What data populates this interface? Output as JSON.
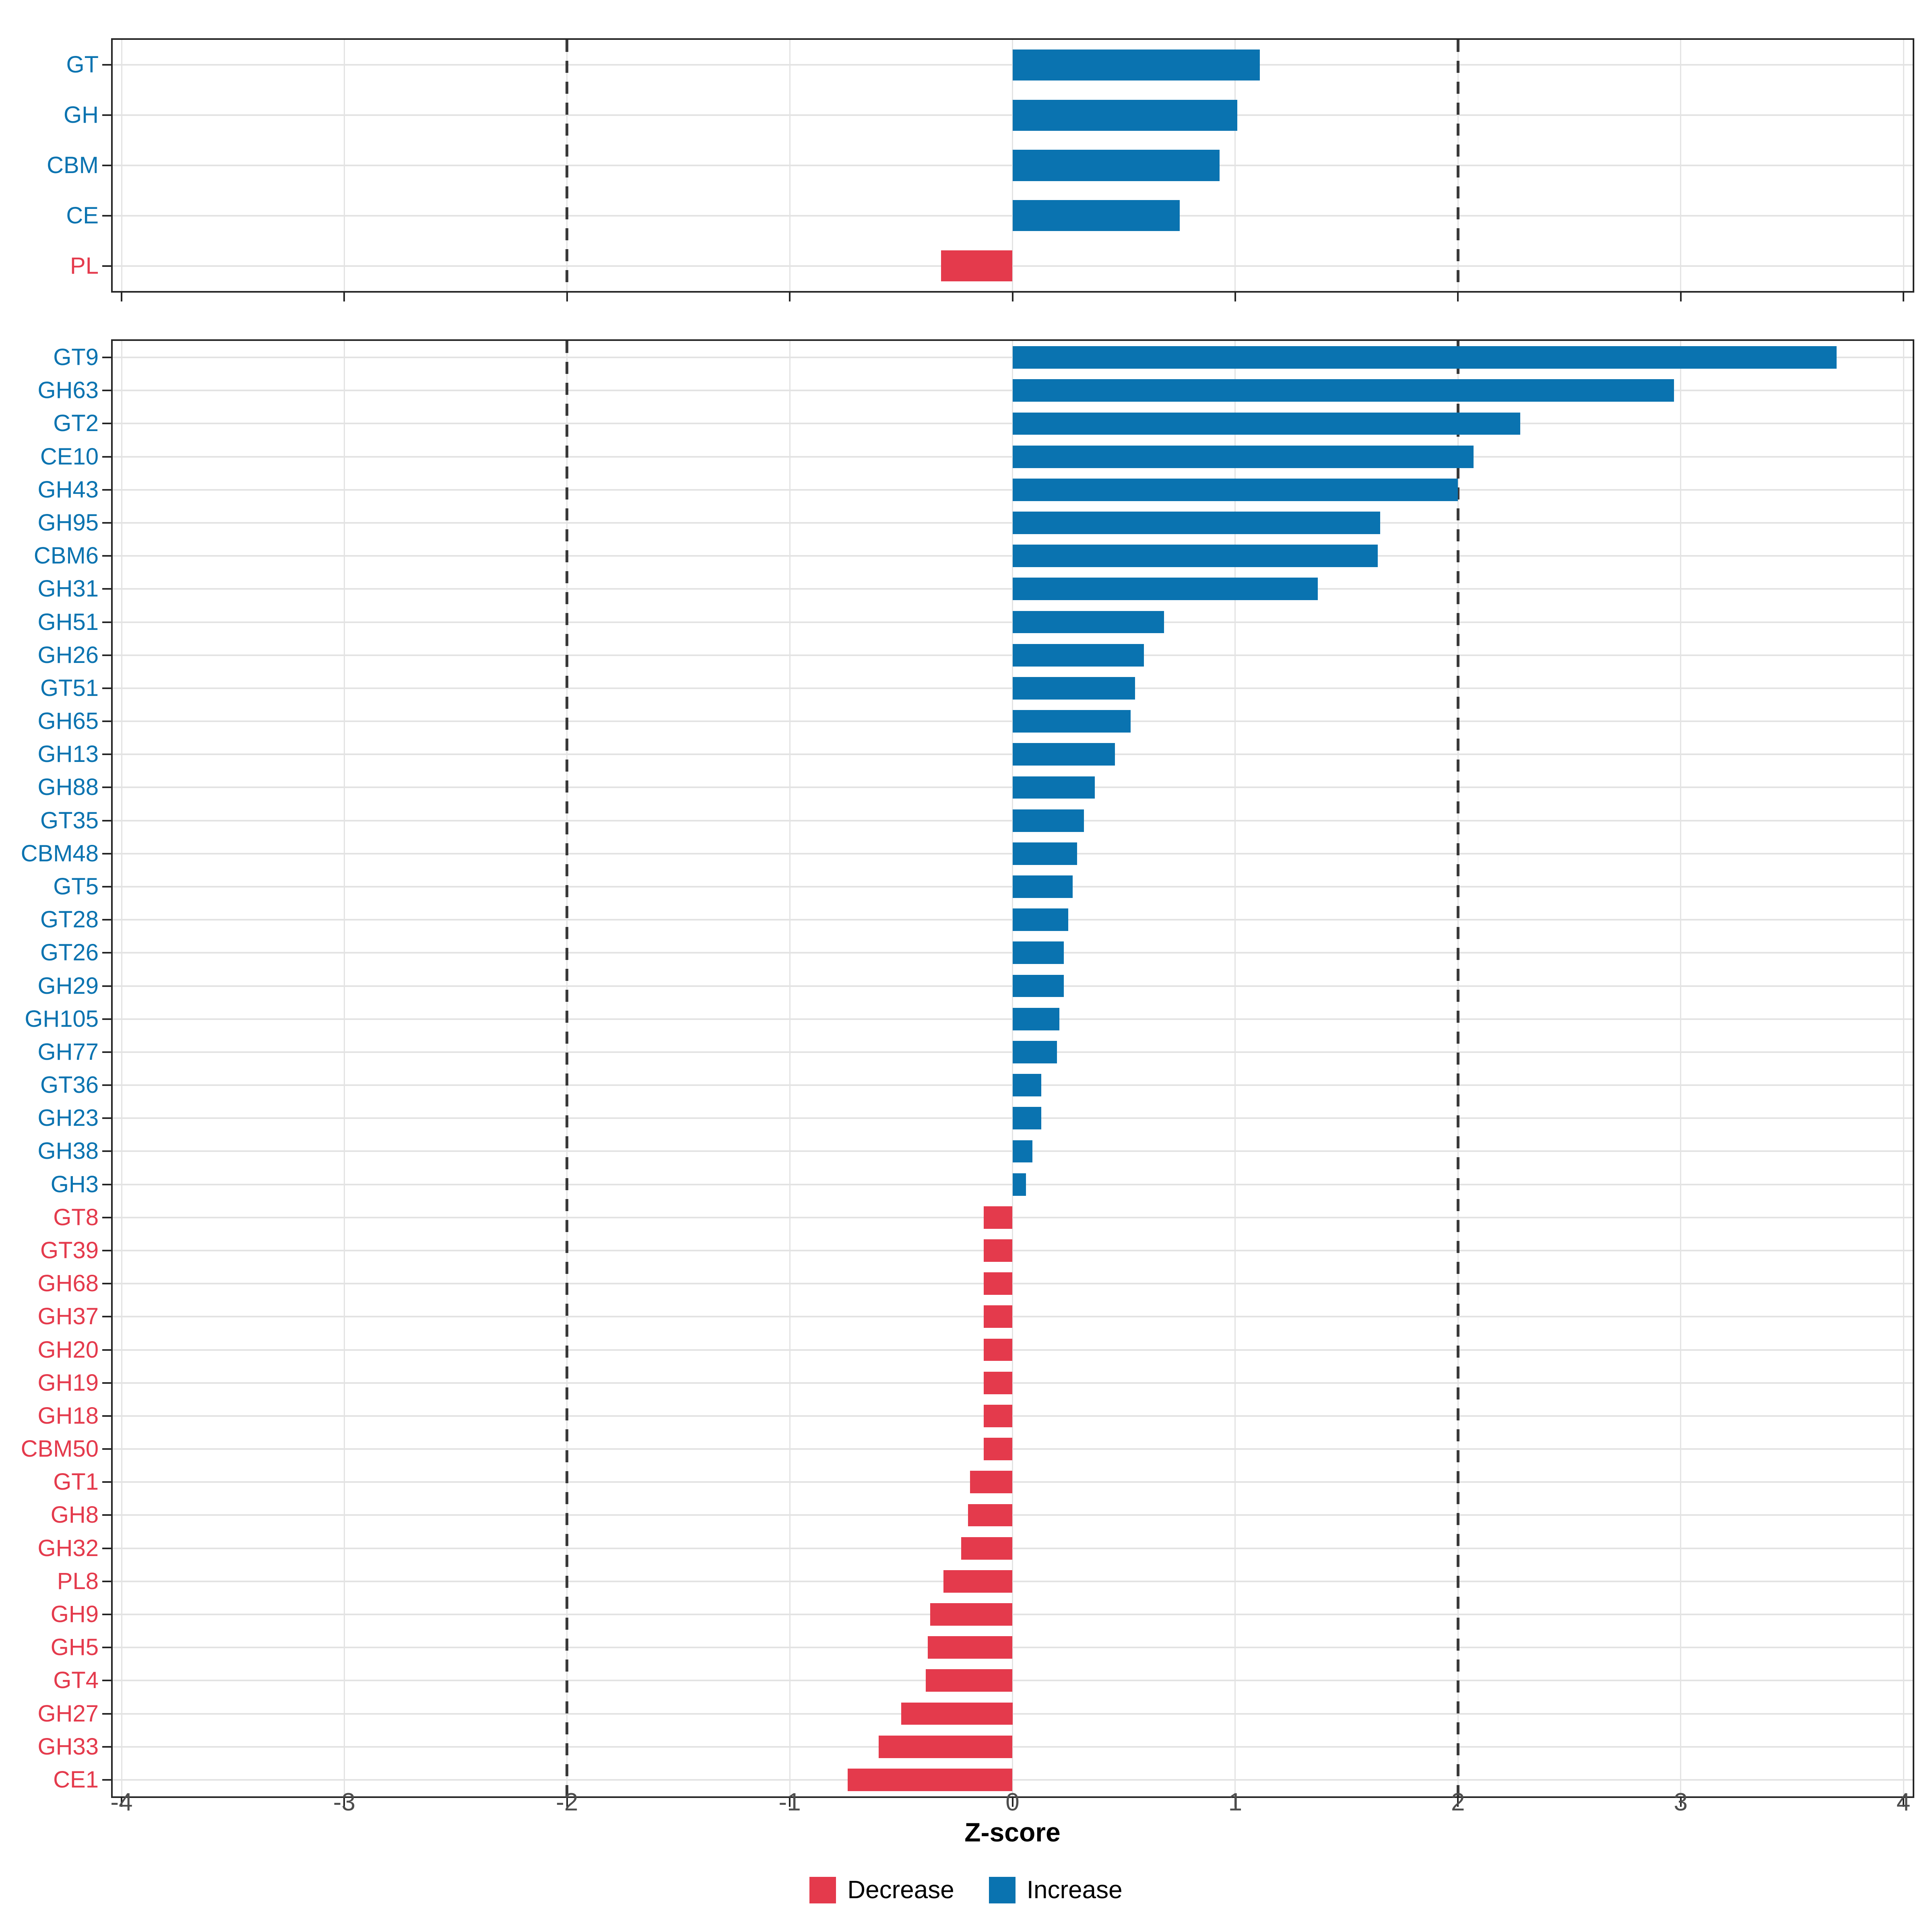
{
  "axis": {
    "label": "Z-score",
    "range": [
      -4,
      4
    ],
    "tick_values": [
      -4,
      -3,
      -2,
      -1,
      0,
      1,
      2,
      3,
      4
    ],
    "tick_labels": [
      "-4",
      "-3",
      "-2",
      "-1",
      "0",
      "1",
      "2",
      "3",
      "4"
    ],
    "dashed_reference_lines": [
      -2,
      2
    ]
  },
  "legend": {
    "items": [
      {
        "label": "Decrease",
        "color": "#e43a4c"
      },
      {
        "label": "Increase",
        "color": "#0a73b0"
      }
    ]
  },
  "colors": {
    "increase": "#0a73b0",
    "decrease": "#e43a4c",
    "grid": "#e3e3e3",
    "panel_border": "#252525",
    "dashed_line": "#3a3a3a",
    "tick_text": "#4d4d4d"
  },
  "chart_data": [
    {
      "type": "bar",
      "orientation": "horizontal",
      "panel": "top",
      "title": "",
      "xlabel": "Z-score",
      "xlim": [
        -4,
        4
      ],
      "grid": true,
      "categories": [
        "GT",
        "GH",
        "CBM",
        "CE",
        "PL"
      ],
      "values": [
        1.11,
        1.01,
        0.93,
        0.75,
        -0.32
      ]
    },
    {
      "type": "bar",
      "orientation": "horizontal",
      "panel": "bottom",
      "title": "",
      "xlabel": "Z-score",
      "xlim": [
        -4,
        4
      ],
      "grid": true,
      "categories": [
        "GT9",
        "GH63",
        "GT2",
        "CE10",
        "GH43",
        "GH95",
        "CBM6",
        "GH31",
        "GH51",
        "GH26",
        "GT51",
        "GH65",
        "GH13",
        "GH88",
        "GT35",
        "CBM48",
        "GT5",
        "GT28",
        "GT26",
        "GH29",
        "GH105",
        "GH77",
        "GT36",
        "GH23",
        "GH38",
        "GH3",
        "GT8",
        "GT39",
        "GH68",
        "GH37",
        "GH20",
        "GH19",
        "GH18",
        "CBM50",
        "GT1",
        "GH8",
        "GH32",
        "PL8",
        "GH9",
        "GH5",
        "GT4",
        "GH27",
        "GH33",
        "CE1"
      ],
      "values": [
        3.7,
        2.97,
        2.28,
        2.07,
        2.0,
        1.65,
        1.64,
        1.37,
        0.68,
        0.59,
        0.55,
        0.53,
        0.46,
        0.37,
        0.32,
        0.29,
        0.27,
        0.25,
        0.23,
        0.23,
        0.21,
        0.2,
        0.13,
        0.13,
        0.09,
        0.06,
        -0.13,
        -0.13,
        -0.13,
        -0.13,
        -0.13,
        -0.13,
        -0.13,
        -0.13,
        -0.19,
        -0.2,
        -0.23,
        -0.31,
        -0.37,
        -0.38,
        -0.39,
        -0.5,
        -0.6,
        -0.74
      ]
    }
  ]
}
